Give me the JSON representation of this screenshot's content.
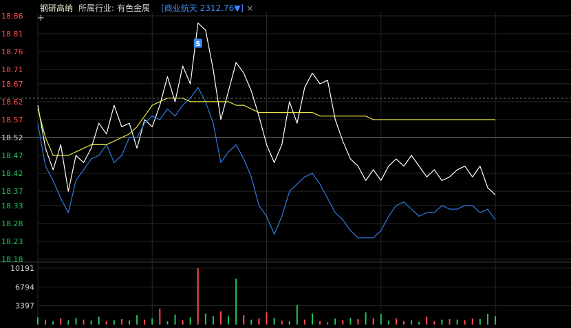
{
  "header": {
    "stock_name": "钢研高纳",
    "industry_label": "所属行业:",
    "industry_value": "有色金属",
    "related_index": "[商业航天 2312.76▼]",
    "close_icon": "×"
  },
  "colors": {
    "up": "#ff4d4d",
    "down": "#22c55e",
    "neutral": "#d0d0d0",
    "price_line": "#ffffff",
    "index_line": "#2f7de1",
    "avg_line": "#e6e64a",
    "badge": "#3a8cff",
    "grid": "#262626"
  },
  "markers": {
    "s_badge": "S",
    "crosshair_icon": "+"
  },
  "chart_data": [
    {
      "type": "line",
      "title": "",
      "xlabel": "",
      "ylabel": "",
      "ylim": [
        18.18,
        18.86
      ],
      "y_ticks": [
        "18.86",
        "18.81",
        "18.76",
        "18.71",
        "18.67",
        "18.62",
        "18.57",
        "18.52",
        "18.47",
        "18.42",
        "18.37",
        "18.33",
        "18.28",
        "18.23",
        "18.18"
      ],
      "reference_price": 18.52,
      "dashed_level": 18.63,
      "grid": true,
      "x": [
        0,
        4,
        8,
        12,
        16,
        20,
        24,
        28,
        32,
        36,
        40,
        44,
        48,
        52,
        56,
        60,
        64,
        68,
        72,
        76,
        80,
        84,
        88,
        92,
        96,
        100,
        104,
        108,
        112,
        116,
        120,
        124,
        128,
        132,
        136,
        140,
        144,
        148,
        152,
        156,
        160,
        164,
        168,
        172,
        176,
        180,
        184,
        188,
        192,
        196,
        200,
        204,
        208,
        212,
        216,
        220,
        224,
        228,
        232,
        236,
        240
      ],
      "series": [
        {
          "values": [
            18.61,
            18.49,
            18.43,
            18.5,
            18.37,
            18.47,
            18.45,
            18.49,
            18.56,
            18.53,
            18.61,
            18.55,
            18.56,
            18.49,
            18.57,
            18.55,
            18.61,
            18.69,
            18.62,
            18.72,
            18.67,
            18.84,
            18.82,
            18.71,
            18.57,
            18.65,
            18.73,
            18.7,
            18.65,
            18.58,
            18.5,
            18.45,
            18.5,
            18.62,
            18.56,
            18.66,
            18.7,
            18.67,
            18.68,
            18.57,
            18.51,
            18.46,
            18.44,
            18.4,
            18.43,
            18.4,
            18.44,
            18.46,
            18.44,
            18.47,
            18.44,
            18.41,
            18.43,
            18.4,
            18.41,
            18.43,
            18.44,
            18.41,
            18.44,
            18.38,
            18.36
          ]
        },
        {
          "values": [
            18.56,
            18.44,
            18.4,
            18.35,
            18.31,
            18.4,
            18.43,
            18.46,
            18.47,
            18.5,
            18.45,
            18.47,
            18.52,
            18.52,
            18.56,
            18.58,
            18.57,
            18.6,
            18.58,
            18.61,
            18.63,
            18.66,
            18.62,
            18.56,
            18.45,
            18.48,
            18.5,
            18.46,
            18.41,
            18.33,
            18.3,
            18.25,
            18.3,
            18.37,
            18.39,
            18.41,
            18.42,
            18.39,
            18.35,
            18.31,
            18.29,
            18.26,
            18.24,
            18.24,
            18.24,
            18.26,
            18.3,
            18.33,
            18.34,
            18.32,
            18.3,
            18.31,
            18.31,
            18.33,
            18.32,
            18.32,
            18.33,
            18.33,
            18.31,
            18.32,
            18.29
          ]
        },
        {
          "values": [
            18.6,
            18.52,
            18.47,
            18.47,
            18.47,
            18.48,
            18.49,
            18.5,
            18.5,
            18.5,
            18.51,
            18.52,
            18.53,
            18.55,
            18.58,
            18.61,
            18.62,
            18.63,
            18.63,
            18.63,
            18.62,
            18.62,
            18.62,
            18.62,
            18.62,
            18.62,
            18.61,
            18.61,
            18.6,
            18.59,
            18.59,
            18.59,
            18.59,
            18.59,
            18.59,
            18.59,
            18.59,
            18.58,
            18.58,
            18.58,
            18.58,
            18.58,
            18.58,
            18.58,
            18.57,
            18.57,
            18.57,
            18.57,
            18.57,
            18.57,
            18.57,
            18.57,
            18.57,
            18.57,
            18.57,
            18.57,
            18.57,
            18.57,
            18.57,
            18.57,
            18.57
          ]
        }
      ]
    },
    {
      "type": "bar",
      "title": "",
      "y_ticks": [
        "10191",
        "6794",
        "3397"
      ],
      "ylim": [
        0,
        10191
      ],
      "values": [
        1300,
        900,
        600,
        1100,
        800,
        1200,
        900,
        700,
        1400,
        600,
        800,
        1000,
        700,
        1700,
        900,
        1100,
        2900,
        600,
        1800,
        800,
        1300,
        10191,
        2000,
        1500,
        2400,
        1600,
        8300,
        1700,
        900,
        1100,
        2200,
        1200,
        700,
        600,
        3500,
        900,
        2000,
        600,
        400,
        1100,
        800,
        1200,
        1000,
        2200,
        1200,
        1900,
        700,
        1100,
        600,
        800,
        500,
        1400,
        600,
        900,
        1000,
        900,
        800,
        1100,
        1000,
        1900,
        1500
      ],
      "dirs": [
        "d",
        "u",
        "d",
        "u",
        "d",
        "d",
        "u",
        "d",
        "d",
        "u",
        "d",
        "u",
        "d",
        "d",
        "u",
        "d",
        "u",
        "d",
        "d",
        "u",
        "d",
        "u",
        "d",
        "d",
        "u",
        "d",
        "d",
        "u",
        "d",
        "u",
        "u",
        "d",
        "u",
        "d",
        "d",
        "u",
        "d",
        "u",
        "d",
        "d",
        "u",
        "d",
        "u",
        "d",
        "u",
        "d",
        "d",
        "u",
        "u",
        "d",
        "d",
        "u",
        "u",
        "d",
        "u",
        "d",
        "u",
        "u",
        "d",
        "d",
        "d"
      ]
    }
  ]
}
